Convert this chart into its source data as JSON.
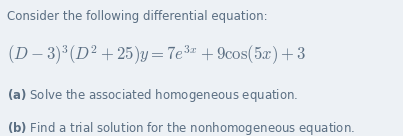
{
  "background_color": "#edf1f5",
  "text_color": "#5a6e82",
  "fig_width": 4.03,
  "fig_height": 1.36,
  "dpi": 100,
  "line1_fontsize": 8.5,
  "line2_fontsize": 12.0,
  "line34_fontsize": 8.5
}
